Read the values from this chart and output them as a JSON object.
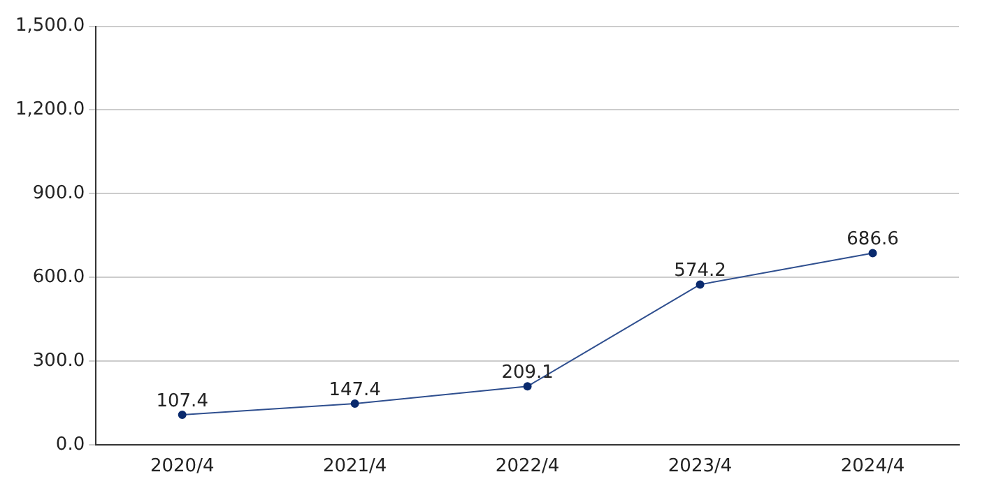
{
  "chart_data": {
    "type": "line",
    "categories": [
      "2020/4",
      "2021/4",
      "2022/4",
      "2023/4",
      "2024/4"
    ],
    "series": [
      {
        "color": "#2f4f8f",
        "values": [
          107.4,
          147.4,
          209.1,
          574.2,
          686.6
        ]
      }
    ],
    "ylim": [
      0,
      1500
    ],
    "yticks": [
      {
        "value": 0,
        "label": "0.0"
      },
      {
        "value": 300,
        "label": "300.0"
      },
      {
        "value": 600,
        "label": "600.0"
      },
      {
        "value": 900,
        "label": "900.0"
      },
      {
        "value": 1200,
        "label": "1,200.0"
      },
      {
        "value": 1500,
        "label": "1,500.0"
      }
    ],
    "grid": "y",
    "marker": "circle",
    "line_style": "solid",
    "data_labels": true,
    "legend": false
  }
}
